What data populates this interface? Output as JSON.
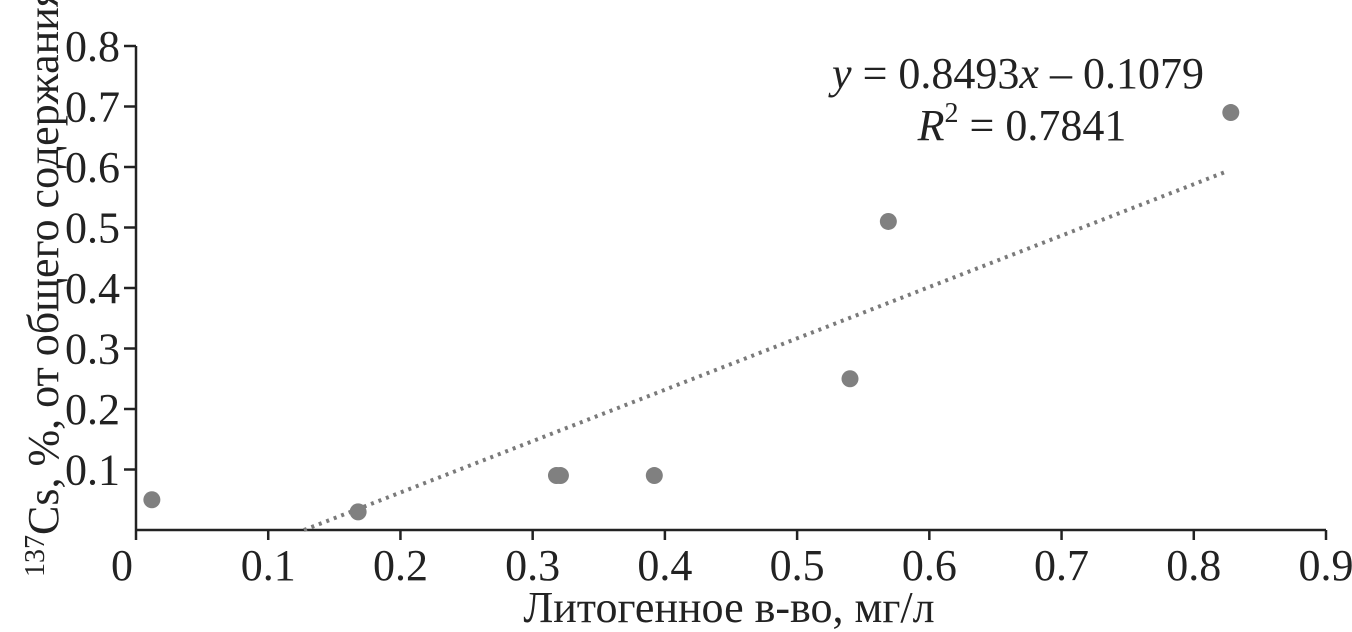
{
  "chart_data": {
    "type": "scatter",
    "xlabel": "Литогенное в-во, мг/л",
    "ylabel": {
      "isotope_mass": "137",
      "rest": "Cs, %, от общего содержания"
    },
    "xlim": [
      0,
      0.9
    ],
    "ylim": [
      0,
      0.8
    ],
    "x_ticks": [
      "0",
      "0.1",
      "0.2",
      "0.3",
      "0.4",
      "0.5",
      "0.6",
      "0.7",
      "0.8",
      "0.9"
    ],
    "y_ticks": [
      "0.1",
      "0.2",
      "0.3",
      "0.4",
      "0.5",
      "0.6",
      "0.7",
      "0.8"
    ],
    "grid": false,
    "points": [
      {
        "x": 0.012,
        "y": 0.05
      },
      {
        "x": 0.168,
        "y": 0.03
      },
      {
        "x": 0.318,
        "y": 0.09
      },
      {
        "x": 0.321,
        "y": 0.09
      },
      {
        "x": 0.392,
        "y": 0.09
      },
      {
        "x": 0.54,
        "y": 0.25
      },
      {
        "x": 0.569,
        "y": 0.51
      },
      {
        "x": 0.828,
        "y": 0.69
      }
    ],
    "trendline": {
      "slope": 0.8493,
      "intercept": -0.1079,
      "x_range": [
        0.127,
        0.825
      ],
      "style": "dotted"
    },
    "annotation": {
      "equation": {
        "y": "y",
        "equals": " = 0.8493",
        "x": "x",
        "rest": " – 0.1079"
      },
      "r_squared": {
        "r": "R",
        "power": "2",
        "rest": " = 0.7841"
      }
    },
    "colors": {
      "points": "#808080",
      "trendline": "#7a7a7a",
      "axes": "#222222"
    }
  }
}
